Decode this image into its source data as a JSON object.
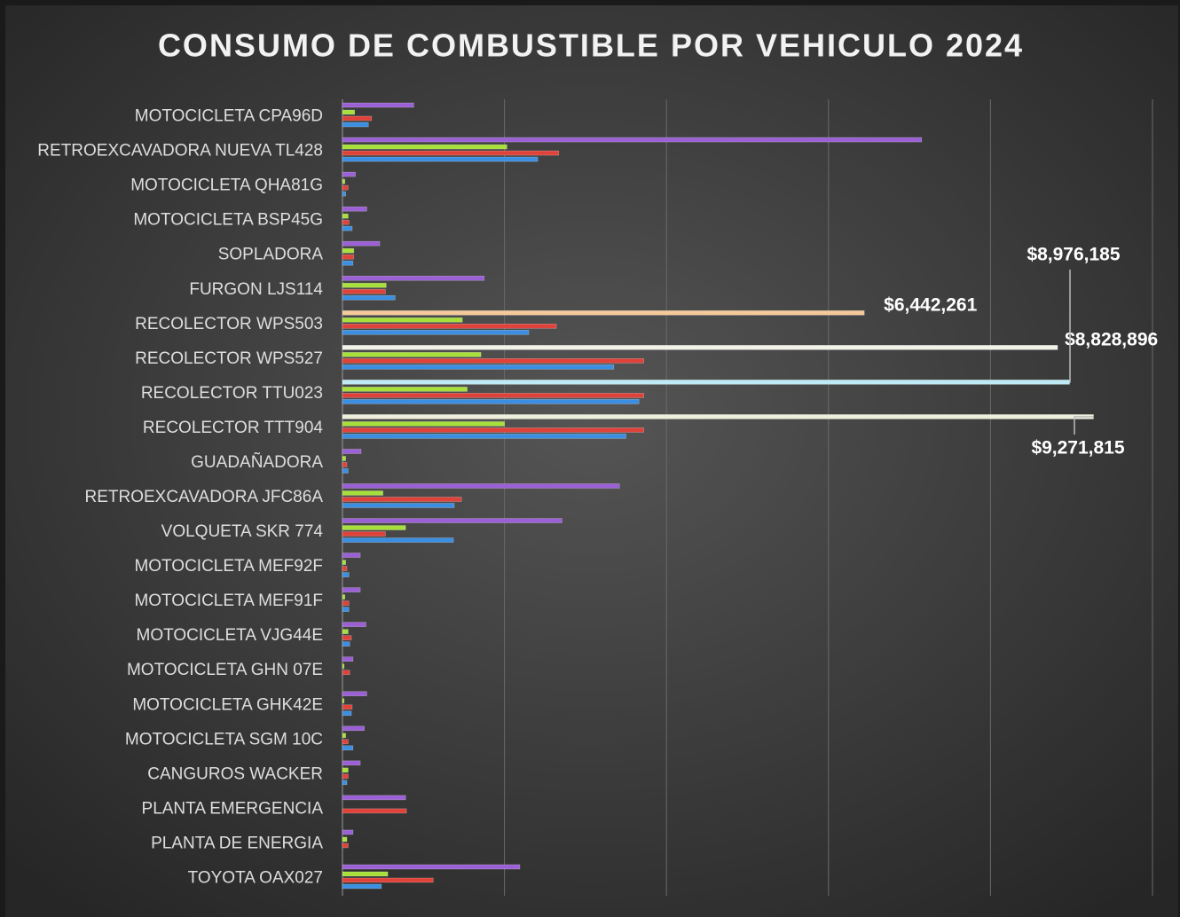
{
  "chart_data": {
    "type": "hbar",
    "title": "CONSUMO DE COMBUSTIBLE POR VEHICULO 2024",
    "categories": [
      "MOTOCICLETA CPA96D",
      "RETROEXCAVADORA NUEVA TL428",
      "MOTOCICLETA QHA81G",
      "MOTOCICLETA BSP45G",
      "SOPLADORA",
      "FURGON LJS114",
      "RECOLECTOR WPS503",
      "RECOLECTOR WPS527",
      "RECOLECTOR TTU023",
      "RECOLECTOR TTT904",
      "GUADAÑADORA",
      "RETROEXCAVADORA JFC86A",
      "VOLQUETA SKR 774",
      "MOTOCICLETA MEF92F",
      "MOTOCICLETA MEF91F",
      "MOTOCICLETA VJG44E",
      "MOTOCICLETA GHN 07E",
      "MOTOCICLETA GHK42E",
      "MOTOCICLETA SGM 10C",
      "CANGUROS WACKER",
      "PLANTA EMERGENCIA",
      "PLANTA DE ENERGIA",
      "TOYOTA OAX027"
    ],
    "series": [
      {
        "color": "#9b5fd6",
        "values": [
          880000,
          7150000,
          160000,
          300000,
          460000,
          1750000,
          6442261,
          8828896,
          8976185,
          9271815,
          230000,
          3420000,
          2710000,
          220000,
          220000,
          290000,
          130000,
          300000,
          270000,
          220000,
          780000,
          130000,
          2190000
        ],
        "value_labels": [
          null,
          null,
          null,
          null,
          null,
          null,
          "$6,442,261",
          "$8,828,896",
          "$8,976,185",
          "$9,271,815",
          null,
          null,
          null,
          null,
          null,
          null,
          null,
          null,
          null,
          null,
          null,
          null,
          null
        ]
      },
      {
        "color": "#a8e03a",
        "values": [
          150000,
          2030000,
          30000,
          70000,
          140000,
          540000,
          1480000,
          1710000,
          1540000,
          2000000,
          40000,
          500000,
          780000,
          40000,
          30000,
          70000,
          20000,
          20000,
          40000,
          70000,
          0,
          55000,
          560000
        ]
      },
      {
        "color": "#e0423a",
        "values": [
          360000,
          2670000,
          70000,
          80000,
          140000,
          530000,
          2640000,
          3720000,
          3720000,
          3720000,
          55000,
          1470000,
          530000,
          55000,
          80000,
          110000,
          90000,
          120000,
          70000,
          70000,
          790000,
          70000,
          1120000
        ]
      },
      {
        "color": "#3b8fe3",
        "values": [
          320000,
          2410000,
          40000,
          120000,
          130000,
          650000,
          2300000,
          3350000,
          3660000,
          3500000,
          70000,
          1380000,
          1370000,
          80000,
          80000,
          90000,
          0,
          110000,
          130000,
          55000,
          0,
          0,
          480000
        ]
      }
    ],
    "xlim": [
      0,
      10000000
    ],
    "xticks": [
      0,
      2000000,
      4000000,
      6000000,
      8000000,
      10000000
    ],
    "grid": true
  }
}
